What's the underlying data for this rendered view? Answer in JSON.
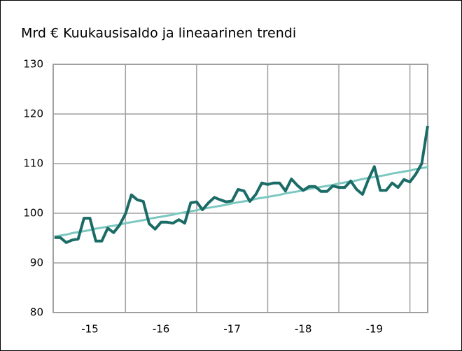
{
  "chart_data": {
    "type": "line",
    "title": "Mrd €  Kuukausisaldo ja lineaarinen trendi",
    "categories": [
      null,
      null,
      null,
      null,
      null,
      null,
      null,
      null,
      null,
      null,
      null,
      null,
      null,
      null,
      null,
      null,
      null,
      null,
      null,
      null,
      null,
      null,
      null,
      null,
      null,
      null,
      null,
      null,
      null,
      null,
      null,
      null,
      null,
      null,
      null,
      null,
      null,
      null,
      null,
      null,
      null,
      null,
      null,
      null,
      null,
      null,
      null,
      null,
      null,
      null,
      null,
      null,
      null,
      null,
      null,
      null,
      null,
      null,
      null,
      null,
      null,
      null,
      null,
      null
    ],
    "series": [
      {
        "color": "#1b6b66",
        "values": [
          95.1,
          95.1,
          94.1,
          94.6,
          94.8,
          99.0,
          99.0,
          94.4,
          94.4,
          97.0,
          96.1,
          97.6,
          99.9,
          103.7,
          102.7,
          102.4,
          97.9,
          96.8,
          98.2,
          98.2,
          98.0,
          98.7,
          98.0,
          102.1,
          102.3,
          100.7,
          102.1,
          103.2,
          102.7,
          102.3,
          102.5,
          104.8,
          104.5,
          102.4,
          103.8,
          106.1,
          105.8,
          106.1,
          106.1,
          104.5,
          106.9,
          105.6,
          104.6,
          105.4,
          105.4,
          104.4,
          104.4,
          105.5,
          105.2,
          105.2,
          106.5,
          104.8,
          103.8,
          106.8,
          109.4,
          104.6,
          104.6,
          106.1,
          105.2,
          106.8,
          106.3,
          107.9,
          110.0,
          117.6
        ]
      },
      {
        "color": "#7cc8c0",
        "values": [
          95.3,
          95.5,
          95.7,
          96.0,
          96.2,
          96.4,
          96.6,
          96.9,
          97.1,
          97.3,
          97.5,
          97.7,
          98.0,
          98.2,
          98.4,
          98.6,
          98.9,
          99.1,
          99.3,
          99.5,
          99.7,
          100.0,
          100.2,
          100.4,
          100.6,
          100.9,
          101.1,
          101.3,
          101.5,
          101.7,
          102.0,
          102.2,
          102.4,
          102.6,
          102.9,
          103.1,
          103.3,
          103.5,
          103.7,
          104.0,
          104.2,
          104.4,
          104.6,
          104.9,
          105.1,
          105.3,
          105.5,
          105.7,
          106.0,
          106.2,
          106.4,
          106.6,
          106.9,
          107.1,
          107.3,
          107.5,
          107.7,
          108.0,
          108.2,
          108.4,
          108.6,
          108.9,
          109.1,
          109.3
        ]
      }
    ],
    "xlim": [
      -0.2,
      63
    ],
    "xticks": [
      {
        "value": 6,
        "label": "-15"
      },
      {
        "value": 18,
        "label": "-16"
      },
      {
        "value": 30,
        "label": "-17"
      },
      {
        "value": 42,
        "label": "-18"
      },
      {
        "value": 54,
        "label": "-19"
      }
    ],
    "xgrid": [
      12,
      24,
      36,
      48,
      60
    ],
    "ylim": [
      80,
      130
    ],
    "yticks": [
      80,
      90,
      100,
      110,
      120,
      130
    ],
    "grid": true
  }
}
